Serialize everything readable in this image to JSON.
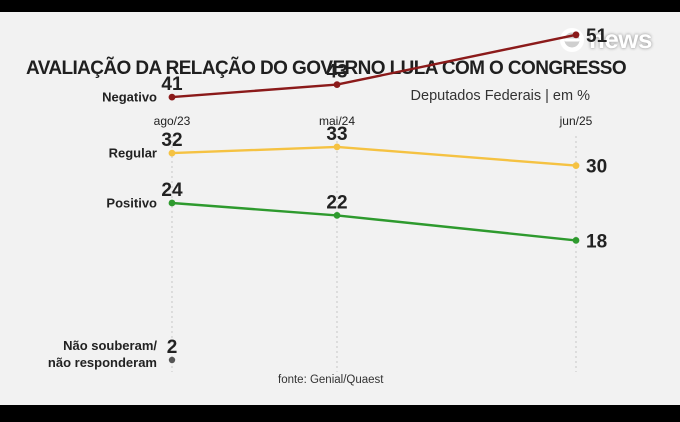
{
  "brand": {
    "logo_text": "news"
  },
  "chart_data": {
    "type": "line",
    "title": "AVALIAÇÃO DA RELAÇÃO DO GOVERNO LULA COM O CONGRESSO",
    "subtitle": "Deputados Federais | em %",
    "x": [
      "ago/23",
      "mai/24",
      "jun/25"
    ],
    "series": [
      {
        "name": "Negativo",
        "values": [
          41,
          43,
          51
        ],
        "color": "#8b1a1a"
      },
      {
        "name": "Regular",
        "values": [
          32,
          33,
          30
        ],
        "color": "#f5c242"
      },
      {
        "name": "Positivo",
        "values": [
          24,
          22,
          18
        ],
        "color": "#2e9a2e"
      }
    ],
    "extra": {
      "label": "Não souberam/\nnão responderam",
      "x": "ago/23",
      "value": 2,
      "color": "#555555"
    },
    "source": "fonte: Genial/Quaest",
    "grid": "vertical dotted lines at each x"
  }
}
